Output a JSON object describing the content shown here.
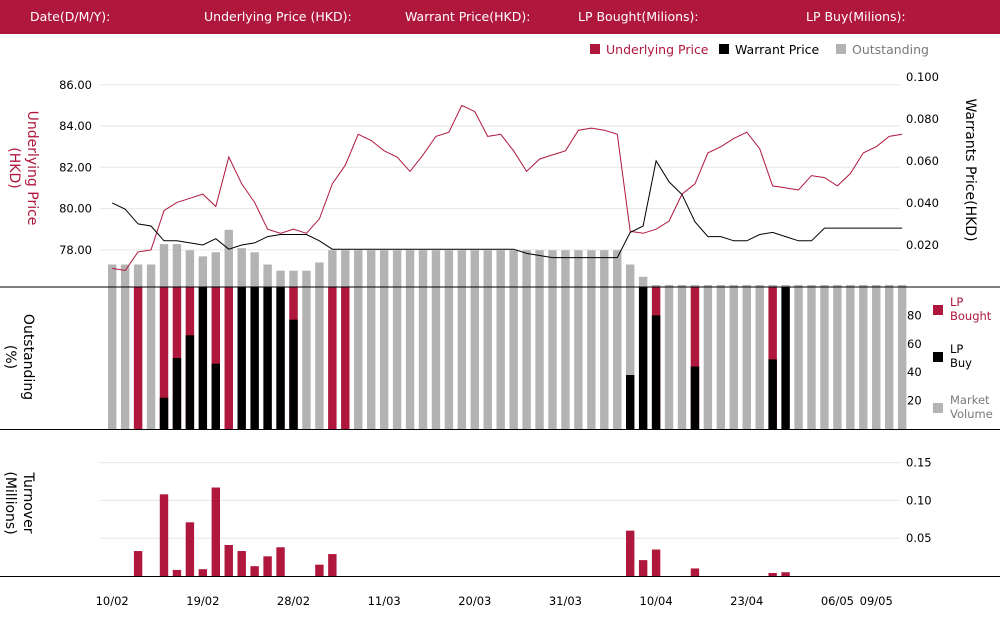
{
  "header": {
    "date_label": "Date(D/M/Y):",
    "underlying_label": "Underlying Price (HKD):",
    "warrant_label": "Warrant  Price(HKD):",
    "lp_bought_label": "LP Bought(Milions):",
    "lp_buy_label": "LP Buy(Milions):"
  },
  "colors": {
    "underlying": "#b0173d",
    "warrant": "#000000",
    "outstanding": "#b3b3b3",
    "header_bg": "#b0173d"
  },
  "legend_top": [
    "Underlying Price",
    "Warrant  Price",
    "Outstanding"
  ],
  "legend_mid": {
    "lp_bought": [
      "LP",
      "Bought"
    ],
    "lp_buy": [
      "LP",
      "Buy"
    ],
    "market_volume": [
      "Market",
      "Volume"
    ]
  },
  "axis_titles": {
    "left_top": [
      "Underlying Price",
      "(HKD)"
    ],
    "right_top": [
      "Warrants  Price(HKD)"
    ],
    "left_mid": [
      "Outstanding",
      "(%)"
    ],
    "left_bot": [
      "Turnover",
      "(Millions)"
    ]
  },
  "chart_data": [
    {
      "type": "line",
      "title": "",
      "ylabel": "Underlying Price (HKD)",
      "y2label": "Warrants  Price(HKD)",
      "ylim": [
        76.2,
        87.2
      ],
      "y2lim": [
        0.0,
        0.108
      ],
      "yticks": [
        "86.00",
        "84.00",
        "82.00",
        "80.00",
        "78.00"
      ],
      "y2ticks": [
        "0.100",
        "0.080",
        "0.060",
        "0.040",
        "0.020"
      ],
      "series": [
        {
          "name": "Underlying Price",
          "axis": "left",
          "values": [
            77.1,
            77.0,
            77.9,
            78.0,
            79.9,
            80.3,
            80.5,
            80.7,
            80.1,
            82.5,
            81.2,
            80.3,
            79.0,
            78.8,
            79.0,
            78.8,
            79.5,
            81.2,
            82.1,
            83.6,
            83.3,
            82.8,
            82.5,
            81.8,
            82.6,
            83.5,
            83.7,
            85.0,
            84.7,
            83.5,
            83.6,
            82.8,
            81.8,
            82.4,
            82.6,
            82.8,
            83.8,
            83.9,
            83.8,
            83.6,
            78.9,
            78.8,
            79.0,
            79.4,
            80.7,
            81.2,
            82.7,
            83.0,
            83.4,
            83.7,
            82.9,
            81.1,
            81.0,
            80.9,
            81.6,
            81.5,
            81.1,
            81.7,
            82.7,
            83.0,
            83.5,
            83.6
          ],
          "ylim": [
            76.2,
            87.2
          ]
        },
        {
          "name": "Warrant  Price",
          "axis": "right",
          "values": [
            0.04,
            0.037,
            0.03,
            0.029,
            0.022,
            0.022,
            0.021,
            0.02,
            0.023,
            0.018,
            0.02,
            0.021,
            0.024,
            0.025,
            0.025,
            0.025,
            0.022,
            0.018,
            0.018,
            0.018,
            0.018,
            0.018,
            0.018,
            0.018,
            0.018,
            0.018,
            0.018,
            0.018,
            0.018,
            0.018,
            0.018,
            0.018,
            0.016,
            0.015,
            0.014,
            0.014,
            0.014,
            0.014,
            0.014,
            0.014,
            0.026,
            0.029,
            0.06,
            0.05,
            0.044,
            0.031,
            0.024,
            0.024,
            0.022,
            0.022,
            0.025,
            0.026,
            0.024,
            0.022,
            0.022,
            0.028,
            0.028,
            0.028,
            0.028,
            0.028,
            0.028,
            0.028
          ]
        }
      ],
      "legend": "top-right"
    },
    {
      "type": "bar",
      "title": "",
      "ylim": [
        0,
        100
      ],
      "yticks": [
        "80",
        "60",
        "40",
        "20"
      ],
      "series": [
        {
          "name": "Outstanding",
          "values": [
            11,
            11,
            11,
            11,
            21,
            21,
            18,
            15,
            17,
            28,
            19,
            17,
            11,
            8,
            8,
            8,
            12,
            18,
            18,
            18,
            18,
            18,
            18,
            18,
            18,
            18,
            18,
            18,
            18,
            18,
            18,
            18,
            18,
            18,
            18,
            18,
            18,
            18,
            18,
            18,
            11,
            5,
            1,
            1,
            1,
            1,
            1,
            1,
            1,
            1,
            1,
            1,
            1,
            1,
            1,
            1,
            1,
            1,
            1,
            1,
            1,
            1
          ]
        },
        {
          "name": "LP Bought",
          "values": [
            0,
            0,
            100,
            0,
            100,
            100,
            100,
            0,
            100,
            100,
            0,
            0,
            0,
            0,
            100,
            0,
            0,
            100,
            100,
            0,
            0,
            0,
            0,
            0,
            0,
            0,
            0,
            0,
            0,
            0,
            0,
            0,
            0,
            0,
            0,
            0,
            0,
            0,
            0,
            0,
            0,
            0,
            100,
            0,
            0,
            100,
            0,
            0,
            0,
            0,
            0,
            100,
            0,
            0,
            0,
            0,
            0,
            0,
            0,
            0,
            0,
            0
          ]
        },
        {
          "name": "LP Buy",
          "values": [
            0,
            0,
            0,
            0,
            22,
            50,
            66,
            100,
            46,
            0,
            100,
            100,
            100,
            100,
            77,
            0,
            0,
            0,
            0,
            0,
            0,
            0,
            0,
            0,
            0,
            0,
            0,
            0,
            0,
            0,
            0,
            0,
            0,
            0,
            0,
            0,
            0,
            0,
            0,
            0,
            38,
            100,
            80,
            0,
            0,
            44,
            0,
            0,
            0,
            0,
            0,
            49,
            100,
            0,
            0,
            0,
            0,
            0,
            0,
            0,
            0,
            0
          ]
        },
        {
          "name": "Market Volume",
          "values": [
            100,
            100,
            100,
            100,
            100,
            100,
            100,
            100,
            100,
            100,
            100,
            100,
            100,
            100,
            100,
            100,
            100,
            100,
            100,
            100,
            100,
            100,
            100,
            100,
            100,
            100,
            100,
            100,
            100,
            100,
            100,
            100,
            100,
            100,
            100,
            100,
            100,
            100,
            100,
            100,
            100,
            100,
            100,
            100,
            100,
            100,
            100,
            100,
            100,
            100,
            100,
            100,
            100,
            100,
            100,
            100,
            100,
            100,
            100,
            100,
            100,
            100
          ]
        }
      ],
      "legend": "right"
    },
    {
      "type": "bar",
      "title": "",
      "ylabel": "Turnover (Millions)",
      "ylim": [
        0,
        0.16
      ],
      "yticks": [
        "0.15",
        "0.10",
        "0.05"
      ],
      "x_ticks": [
        "10/02",
        "19/02",
        "28/02",
        "11/03",
        "20/03",
        "31/03",
        "10/04",
        "23/04",
        "06/05",
        "09/05"
      ],
      "x_tick_index": [
        0,
        7,
        14,
        21,
        28,
        35,
        42,
        49,
        56,
        59
      ],
      "series": [
        {
          "name": "Turnover",
          "values": [
            0,
            0,
            0.033,
            0,
            0.108,
            0.008,
            0.071,
            0.009,
            0.117,
            0.041,
            0.033,
            0.013,
            0.026,
            0.038,
            0,
            0,
            0.015,
            0.029,
            0,
            0,
            0,
            0,
            0,
            0,
            0,
            0,
            0,
            0,
            0,
            0,
            0,
            0,
            0,
            0,
            0,
            0,
            0,
            0,
            0,
            0,
            0.06,
            0.021,
            0.035,
            0,
            0,
            0.01,
            0,
            0,
            0,
            0,
            0,
            0.004,
            0.005,
            0,
            0,
            0,
            0,
            0,
            0,
            0,
            0,
            0
          ]
        }
      ]
    }
  ]
}
